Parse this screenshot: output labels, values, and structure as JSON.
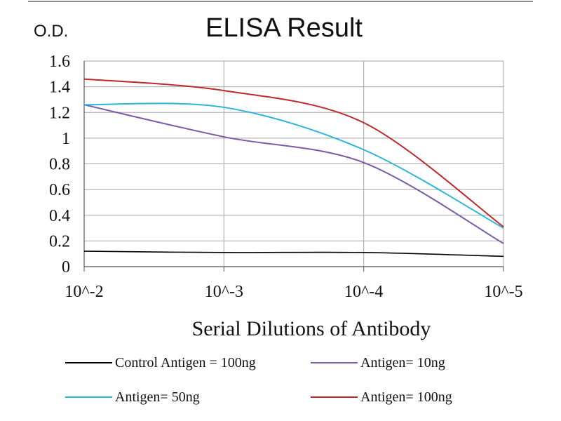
{
  "chart_data": {
    "type": "line",
    "title": "ELISA Result",
    "ylabel": "O.D.",
    "xlabel": "Serial Dilutions of Antibody",
    "categories": [
      "10^-2",
      "10^-3",
      "10^-4",
      "10^-5"
    ],
    "ylim": [
      0,
      1.6
    ],
    "yticks": [
      "0",
      "0.2",
      "0.4",
      "0.6",
      "0.8",
      "1",
      "1.2",
      "1.4",
      "1.6"
    ],
    "grid": true,
    "legend_position": "bottom",
    "series": [
      {
        "name": "Control Antigen = 100ng",
        "color": "#000000",
        "values": [
          0.12,
          0.11,
          0.11,
          0.08
        ]
      },
      {
        "name": "Antigen= 10ng",
        "color": "#7b5aa6",
        "values": [
          1.26,
          1.01,
          0.81,
          0.18
        ]
      },
      {
        "name": "Antigen= 50ng",
        "color": "#2bb5d8",
        "values": [
          1.26,
          1.24,
          0.91,
          0.3
        ]
      },
      {
        "name": "Antigen= 100ng",
        "color": "#c0272d",
        "values": [
          1.46,
          1.37,
          1.12,
          0.31
        ]
      }
    ]
  }
}
